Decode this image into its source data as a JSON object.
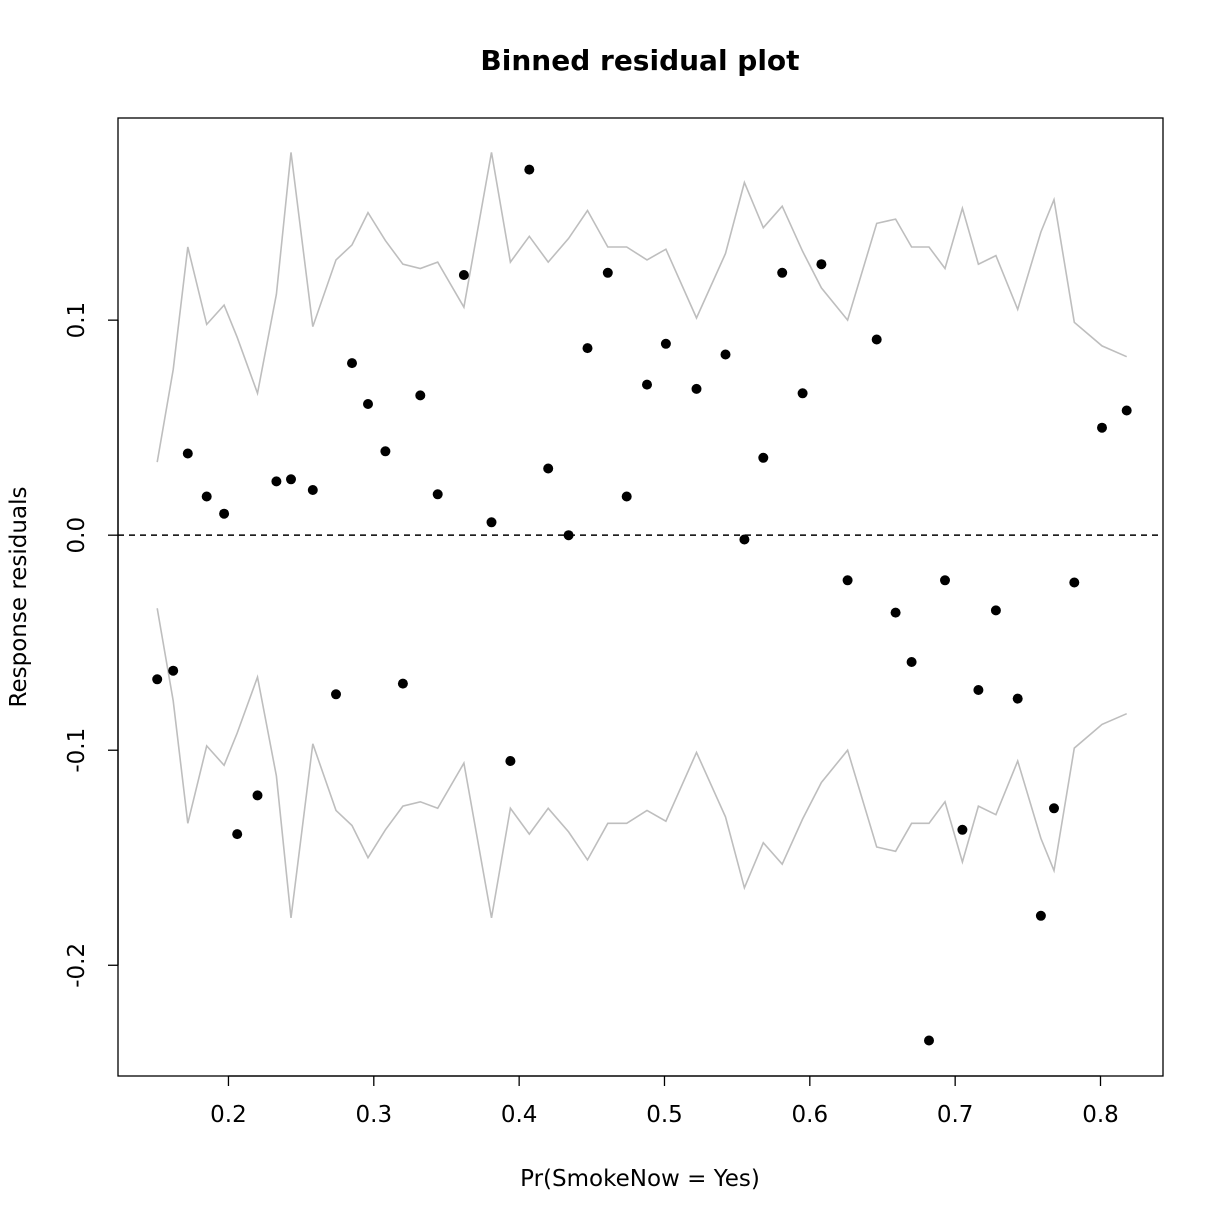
{
  "chart_data": {
    "type": "scatter",
    "title": "Binned residual plot",
    "xlabel": "Pr(SmokeNow = Yes)",
    "ylabel": "Response residuals",
    "xlim": [
      0.124,
      0.843
    ],
    "ylim": [
      -0.2515,
      0.194
    ],
    "xticks": [
      0.2,
      0.3,
      0.4,
      0.5,
      0.6,
      0.7,
      0.8
    ],
    "xtick_labels": [
      "0.2",
      "0.3",
      "0.4",
      "0.5",
      "0.6",
      "0.7",
      "0.8"
    ],
    "yticks": [
      -0.2,
      -0.1,
      0.0,
      0.1
    ],
    "ytick_labels": [
      "-0.2",
      "-0.1",
      "0.0",
      "0.1"
    ],
    "reference_line": {
      "y": 0,
      "style": "dashed",
      "color": "#000000"
    },
    "points_color": "#000000",
    "bound_color": "#bebebe",
    "points": [
      [
        0.151,
        -0.067
      ],
      [
        0.162,
        -0.063
      ],
      [
        0.172,
        0.038
      ],
      [
        0.185,
        0.018
      ],
      [
        0.197,
        0.01
      ],
      [
        0.206,
        -0.139
      ],
      [
        0.22,
        -0.121
      ],
      [
        0.233,
        0.025
      ],
      [
        0.243,
        0.026
      ],
      [
        0.258,
        0.021
      ],
      [
        0.274,
        -0.074
      ],
      [
        0.285,
        0.08
      ],
      [
        0.296,
        0.061
      ],
      [
        0.308,
        0.039
      ],
      [
        0.32,
        -0.069
      ],
      [
        0.332,
        0.065
      ],
      [
        0.344,
        0.019
      ],
      [
        0.362,
        0.121
      ],
      [
        0.381,
        0.006
      ],
      [
        0.394,
        -0.105
      ],
      [
        0.407,
        0.17
      ],
      [
        0.42,
        0.031
      ],
      [
        0.434,
        0.0
      ],
      [
        0.447,
        0.087
      ],
      [
        0.461,
        0.122
      ],
      [
        0.474,
        0.018
      ],
      [
        0.488,
        0.07
      ],
      [
        0.501,
        0.089
      ],
      [
        0.522,
        0.068
      ],
      [
        0.542,
        0.084
      ],
      [
        0.555,
        -0.002
      ],
      [
        0.568,
        0.036
      ],
      [
        0.581,
        0.122
      ],
      [
        0.595,
        0.066
      ],
      [
        0.608,
        0.126
      ],
      [
        0.626,
        -0.021
      ],
      [
        0.646,
        0.091
      ],
      [
        0.659,
        -0.036
      ],
      [
        0.67,
        -0.059
      ],
      [
        0.682,
        -0.235
      ],
      [
        0.693,
        -0.021
      ],
      [
        0.705,
        -0.137
      ],
      [
        0.716,
        -0.072
      ],
      [
        0.728,
        -0.035
      ],
      [
        0.743,
        -0.076
      ],
      [
        0.759,
        -0.177
      ],
      [
        0.768,
        -0.127
      ],
      [
        0.782,
        -0.022
      ],
      [
        0.801,
        0.05
      ],
      [
        0.818,
        0.058
      ]
    ],
    "bounds": [
      [
        0.151,
        0.034
      ],
      [
        0.162,
        0.077
      ],
      [
        0.172,
        0.134
      ],
      [
        0.185,
        0.098
      ],
      [
        0.197,
        0.107
      ],
      [
        0.206,
        0.092
      ],
      [
        0.22,
        0.066
      ],
      [
        0.233,
        0.112
      ],
      [
        0.243,
        0.178
      ],
      [
        0.258,
        0.097
      ],
      [
        0.274,
        0.128
      ],
      [
        0.285,
        0.135
      ],
      [
        0.296,
        0.15
      ],
      [
        0.308,
        0.137
      ],
      [
        0.32,
        0.126
      ],
      [
        0.332,
        0.124
      ],
      [
        0.344,
        0.127
      ],
      [
        0.362,
        0.106
      ],
      [
        0.381,
        0.178
      ],
      [
        0.394,
        0.127
      ],
      [
        0.407,
        0.139
      ],
      [
        0.42,
        0.127
      ],
      [
        0.434,
        0.138
      ],
      [
        0.447,
        0.151
      ],
      [
        0.461,
        0.134
      ],
      [
        0.474,
        0.134
      ],
      [
        0.488,
        0.128
      ],
      [
        0.501,
        0.133
      ],
      [
        0.522,
        0.101
      ],
      [
        0.542,
        0.131
      ],
      [
        0.555,
        0.164
      ],
      [
        0.568,
        0.143
      ],
      [
        0.581,
        0.153
      ],
      [
        0.595,
        0.132
      ],
      [
        0.608,
        0.115
      ],
      [
        0.626,
        0.1
      ],
      [
        0.646,
        0.145
      ],
      [
        0.659,
        0.147
      ],
      [
        0.67,
        0.134
      ],
      [
        0.682,
        0.134
      ],
      [
        0.693,
        0.124
      ],
      [
        0.705,
        0.152
      ],
      [
        0.716,
        0.126
      ],
      [
        0.728,
        0.13
      ],
      [
        0.743,
        0.105
      ],
      [
        0.759,
        0.141
      ],
      [
        0.768,
        0.156
      ],
      [
        0.782,
        0.099
      ],
      [
        0.801,
        0.088
      ],
      [
        0.818,
        0.083
      ]
    ]
  }
}
